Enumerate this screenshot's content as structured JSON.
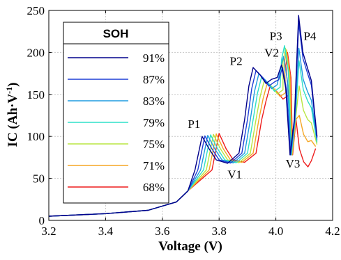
{
  "chart_data": {
    "type": "line",
    "xlabel": "Voltage (V)",
    "ylabel_main": "IC (Ah·V",
    "ylabel_sup": "-1",
    "ylabel_close": ")",
    "xlim": [
      3.2,
      4.2
    ],
    "ylim": [
      0,
      250
    ],
    "xticks": [
      "3.2",
      "3.4",
      "3.6",
      "3.8",
      "4.0",
      "4.2"
    ],
    "yticks": [
      "0",
      "50",
      "100",
      "150",
      "200",
      "250"
    ],
    "grid": true,
    "legend": {
      "title": "SOH",
      "placement": "top-left"
    },
    "annotations": [
      {
        "text": "P1",
        "x": 3.712,
        "y": 110
      },
      {
        "text": "P2",
        "x": 3.86,
        "y": 185
      },
      {
        "text": "V2",
        "x": 3.985,
        "y": 195
      },
      {
        "text": "P3",
        "x": 4.0,
        "y": 215
      },
      {
        "text": "P4",
        "x": 4.12,
        "y": 215
      },
      {
        "text": "V1",
        "x": 3.855,
        "y": 50
      },
      {
        "text": "V3",
        "x": 4.06,
        "y": 63
      }
    ],
    "series": [
      {
        "name": "91%",
        "color": "#00008B",
        "shift": 0.0,
        "scale": 1.0,
        "p3": 185,
        "p4": 244,
        "end": 4.145
      },
      {
        "name": "87%",
        "color": "#1f3fd6",
        "shift": 0.01,
        "scale": 0.98,
        "p3": 182,
        "p4": 235,
        "end": 4.145
      },
      {
        "name": "83%",
        "color": "#1f9be0",
        "shift": 0.02,
        "scale": 0.96,
        "p3": 195,
        "p4": 205,
        "end": 4.145
      },
      {
        "name": "79%",
        "color": "#2ee0c8",
        "shift": 0.03,
        "scale": 0.94,
        "p3": 208,
        "p4": 190,
        "end": 4.145
      },
      {
        "name": "75%",
        "color": "#b8e640",
        "shift": 0.04,
        "scale": 0.92,
        "p3": 205,
        "p4": 160,
        "end": 4.145
      },
      {
        "name": "71%",
        "color": "#f5a623",
        "shift": 0.05,
        "scale": 0.9,
        "p3": 203,
        "p4": 125,
        "end": 4.14
      },
      {
        "name": "68%",
        "color": "#ee1c1c",
        "shift": 0.06,
        "scale": 0.88,
        "p3": 200,
        "p4": 85,
        "end": 4.14
      }
    ]
  }
}
